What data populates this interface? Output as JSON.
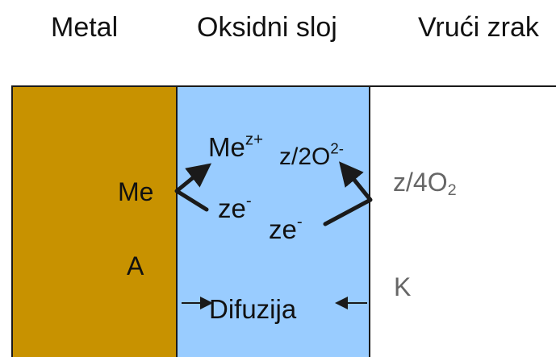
{
  "headers": {
    "metal": "Metal",
    "oxide": "Oksidni sloj",
    "air": "Vrući zrak"
  },
  "metal": {
    "ion_label": "Me",
    "anode_label": "A"
  },
  "oxide": {
    "cation": {
      "base": "Me",
      "charge": "z+"
    },
    "anion": {
      "coef": "z/2",
      "base": "O",
      "charge": "2-"
    },
    "electron_upper": {
      "base": "ze",
      "charge": "-"
    },
    "electron_lower": {
      "base": "ze",
      "charge": "-"
    },
    "diffusion_label": "Difuzija"
  },
  "air": {
    "oxygen": {
      "coef": "z/4",
      "base": "O",
      "sub": "2"
    },
    "cathode_label": "K"
  },
  "colors": {
    "metal": "#c89200",
    "oxide": "#99ccff",
    "air": "#ffffff",
    "border": "#1a1a1a",
    "text": "#111111",
    "muted_text": "#666666"
  }
}
